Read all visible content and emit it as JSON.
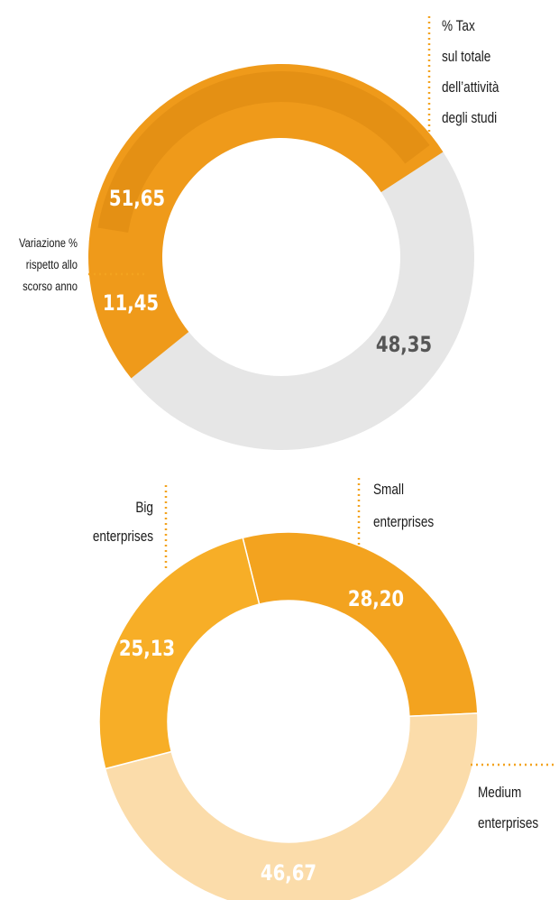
{
  "chart_data": [
    {
      "type": "pie",
      "variant": "donut",
      "series": [
        {
          "name": "% Tax sul totale dell’attività degli studi",
          "value": 51.65,
          "value_label": "51,65",
          "color": "#ef9a1a"
        },
        {
          "name": "",
          "value": 48.35,
          "value_label": "48,35",
          "color": "#e6e6e6"
        }
      ],
      "inner_highlight": {
        "value": 11.45,
        "value_label": "11,45"
      },
      "annotations": {
        "tax_label": [
          "% Tax",
          "sul totale",
          "dell’attività",
          "degli studi"
        ],
        "variation_label": [
          "Variazione %",
          "rispetto allo",
          "scorso anno"
        ]
      }
    },
    {
      "type": "pie",
      "variant": "donut",
      "series": [
        {
          "name": "Small enterprises",
          "label_lines": [
            "Small",
            "enterprises"
          ],
          "value": 28.2,
          "value_label": "28,20",
          "color": "#f3a31f"
        },
        {
          "name": "Medium enterprises",
          "label_lines": [
            "Medium",
            "enterprises"
          ],
          "value": 46.67,
          "value_label": "46,67",
          "color": "#fbdcaa"
        },
        {
          "name": "Big enterprises",
          "label_lines": [
            "Big",
            "enterprises"
          ],
          "value": 25.13,
          "value_label": "25,13",
          "color": "#f7ae27"
        }
      ]
    }
  ]
}
